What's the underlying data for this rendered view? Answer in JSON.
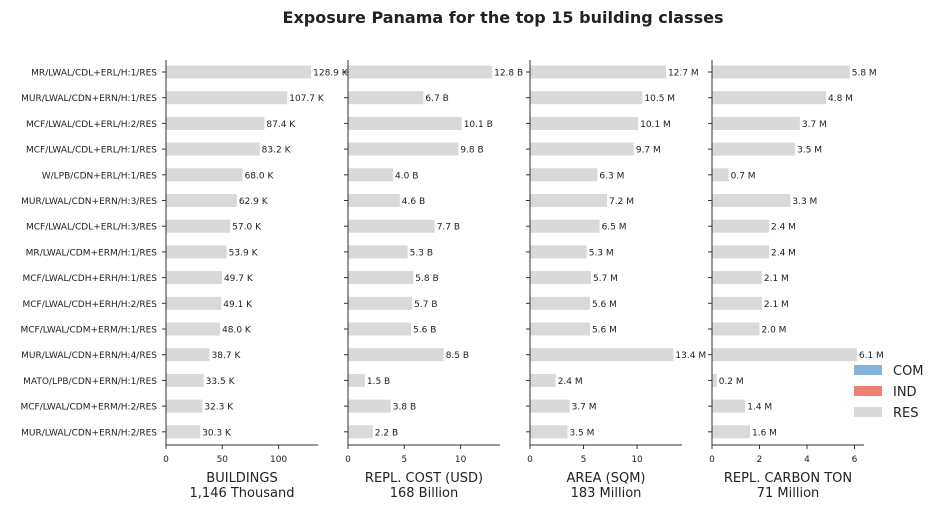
{
  "title": "Exposure Panama for the top 15 building classes",
  "legend": {
    "placement": "right",
    "items": [
      {
        "label": "COM",
        "color": "#86b4d8"
      },
      {
        "label": "IND",
        "color": "#f08070"
      },
      {
        "label": "RES",
        "color": "#d9d9d9"
      }
    ]
  },
  "chart_data": {
    "type": "bar",
    "orientation": "horizontal",
    "title": "Exposure Panama for the top 15 building classes",
    "bar_color": "#d9d9d9",
    "categories": [
      "MR/LWAL/CDL+ERL/H:1/RES",
      "MUR/LWAL/CDN+ERN/H:1/RES",
      "MCF/LWAL/CDL+ERL/H:2/RES",
      "MCF/LWAL/CDL+ERL/H:1/RES",
      "W/LPB/CDN+ERL/H:1/RES",
      "MUR/LWAL/CDN+ERN/H:3/RES",
      "MCF/LWAL/CDL+ERL/H:3/RES",
      "MR/LWAL/CDM+ERM/H:1/RES",
      "MCF/LWAL/CDH+ERH/H:1/RES",
      "MCF/LWAL/CDH+ERH/H:2/RES",
      "MCF/LWAL/CDM+ERM/H:1/RES",
      "MUR/LWAL/CDN+ERN/H:4/RES",
      "MATO/LPB/CDN+ERN/H:1/RES",
      "MCF/LWAL/CDM+ERM/H:2/RES",
      "MUR/LWAL/CDN+ERN/H:2/RES"
    ],
    "series": [
      {
        "xlabel": "BUILDINGS",
        "total": "1,146 Thousand",
        "xlim": [
          0,
          135
        ],
        "ticks": [
          0,
          50,
          100
        ],
        "values": [
          128.9,
          107.7,
          87.4,
          83.2,
          68.0,
          62.9,
          57.0,
          53.9,
          49.7,
          49.1,
          48.0,
          38.7,
          33.5,
          32.3,
          30.3
        ],
        "labels": [
          "128.9 K",
          "107.7 K",
          "87.4 K",
          "83.2 K",
          "68.0 K",
          "62.9 K",
          "57.0 K",
          "53.9 K",
          "49.7 K",
          "49.1 K",
          "48.0 K",
          "38.7 K",
          "33.5 K",
          "32.3 K",
          "30.3 K"
        ]
      },
      {
        "xlabel": "REPL. COST (USD)",
        "total": "168 Billion",
        "xlim": [
          0,
          13.5
        ],
        "ticks": [
          0,
          5,
          10
        ],
        "values": [
          12.8,
          6.7,
          10.1,
          9.8,
          4.0,
          4.6,
          7.7,
          5.3,
          5.8,
          5.7,
          5.6,
          8.5,
          1.5,
          3.8,
          2.2
        ],
        "labels": [
          "12.8 B",
          "6.7 B",
          "10.1 B",
          "9.8 B",
          "4.0 B",
          "4.6 B",
          "7.7 B",
          "5.3 B",
          "5.8 B",
          "5.7 B",
          "5.6 B",
          "8.5 B",
          "1.5 B",
          "3.8 B",
          "2.2 B"
        ]
      },
      {
        "xlabel": "AREA (SQM)",
        "total": "183 Million",
        "xlim": [
          0,
          14.2
        ],
        "ticks": [
          0,
          5,
          10
        ],
        "values": [
          12.7,
          10.5,
          10.1,
          9.7,
          6.3,
          7.2,
          6.5,
          5.3,
          5.7,
          5.6,
          5.6,
          13.4,
          2.4,
          3.7,
          3.5
        ],
        "labels": [
          "12.7 M",
          "10.5 M",
          "10.1 M",
          "9.7 M",
          "6.3 M",
          "7.2 M",
          "6.5 M",
          "5.3 M",
          "5.7 M",
          "5.6 M",
          "5.6 M",
          "13.4 M",
          "2.4 M",
          "3.7 M",
          "3.5 M"
        ]
      },
      {
        "xlabel": "REPL. CARBON TON",
        "total": "71 Million",
        "xlim": [
          0,
          6.4
        ],
        "ticks": [
          0,
          2,
          4,
          6
        ],
        "values": [
          5.8,
          4.8,
          3.7,
          3.5,
          0.7,
          3.3,
          2.4,
          2.4,
          2.1,
          2.1,
          2.0,
          6.1,
          0.2,
          1.4,
          1.6
        ],
        "labels": [
          "5.8 M",
          "4.8 M",
          "3.7 M",
          "3.5 M",
          "0.7 M",
          "3.3 M",
          "2.4 M",
          "2.4 M",
          "2.1 M",
          "2.1 M",
          "2.0 M",
          "6.1 M",
          "0.2 M",
          "1.4 M",
          "1.6 M"
        ]
      }
    ]
  }
}
